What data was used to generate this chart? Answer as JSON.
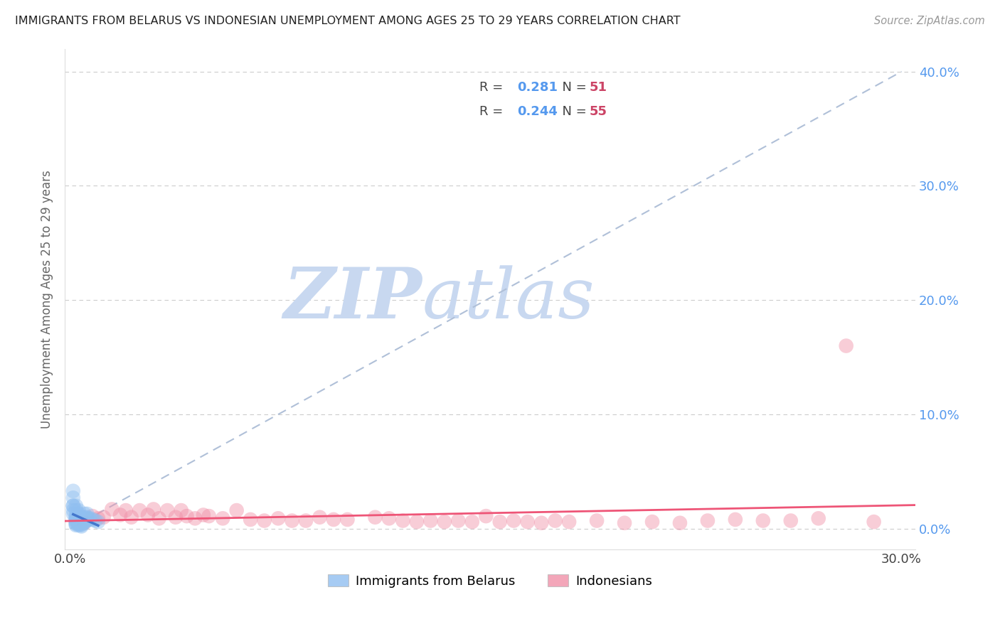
{
  "title": "IMMIGRANTS FROM BELARUS VS INDONESIAN UNEMPLOYMENT AMONG AGES 25 TO 29 YEARS CORRELATION CHART",
  "source": "Source: ZipAtlas.com",
  "ylabel": "Unemployment Among Ages 25 to 29 years",
  "ytick_vals": [
    0.0,
    0.1,
    0.2,
    0.3,
    0.4
  ],
  "xlim": [
    -0.002,
    0.305
  ],
  "ylim": [
    -0.018,
    0.42
  ],
  "R_belarus": 0.281,
  "N_belarus": 51,
  "R_indonesian": 0.244,
  "N_indonesian": 55,
  "scatter_belarus": [
    [
      0.001,
      0.033
    ],
    [
      0.001,
      0.027
    ],
    [
      0.001,
      0.02
    ],
    [
      0.001,
      0.02
    ],
    [
      0.001,
      0.016
    ],
    [
      0.001,
      0.013
    ],
    [
      0.002,
      0.02
    ],
    [
      0.002,
      0.016
    ],
    [
      0.002,
      0.011
    ],
    [
      0.002,
      0.01
    ],
    [
      0.002,
      0.009
    ],
    [
      0.002,
      0.008
    ],
    [
      0.002,
      0.007
    ],
    [
      0.002,
      0.006
    ],
    [
      0.002,
      0.005
    ],
    [
      0.002,
      0.004
    ],
    [
      0.002,
      0.003
    ],
    [
      0.003,
      0.016
    ],
    [
      0.003,
      0.013
    ],
    [
      0.003,
      0.01
    ],
    [
      0.003,
      0.009
    ],
    [
      0.003,
      0.008
    ],
    [
      0.003,
      0.007
    ],
    [
      0.003,
      0.006
    ],
    [
      0.003,
      0.005
    ],
    [
      0.003,
      0.004
    ],
    [
      0.003,
      0.003
    ],
    [
      0.004,
      0.01
    ],
    [
      0.004,
      0.008
    ],
    [
      0.004,
      0.007
    ],
    [
      0.004,
      0.006
    ],
    [
      0.004,
      0.005
    ],
    [
      0.004,
      0.004
    ],
    [
      0.004,
      0.003
    ],
    [
      0.004,
      0.002
    ],
    [
      0.005,
      0.013
    ],
    [
      0.005,
      0.01
    ],
    [
      0.005,
      0.008
    ],
    [
      0.005,
      0.007
    ],
    [
      0.005,
      0.006
    ],
    [
      0.005,
      0.005
    ],
    [
      0.006,
      0.013
    ],
    [
      0.006,
      0.01
    ],
    [
      0.006,
      0.009
    ],
    [
      0.006,
      0.008
    ],
    [
      0.006,
      0.007
    ],
    [
      0.007,
      0.009
    ],
    [
      0.007,
      0.008
    ],
    [
      0.008,
      0.008
    ],
    [
      0.009,
      0.007
    ],
    [
      0.01,
      0.006
    ]
  ],
  "scatter_indonesian": [
    [
      0.005,
      0.005
    ],
    [
      0.008,
      0.011
    ],
    [
      0.01,
      0.009
    ],
    [
      0.012,
      0.01
    ],
    [
      0.015,
      0.017
    ],
    [
      0.018,
      0.012
    ],
    [
      0.02,
      0.016
    ],
    [
      0.022,
      0.01
    ],
    [
      0.025,
      0.016
    ],
    [
      0.028,
      0.012
    ],
    [
      0.03,
      0.017
    ],
    [
      0.032,
      0.009
    ],
    [
      0.035,
      0.016
    ],
    [
      0.038,
      0.01
    ],
    [
      0.04,
      0.016
    ],
    [
      0.042,
      0.011
    ],
    [
      0.045,
      0.009
    ],
    [
      0.048,
      0.012
    ],
    [
      0.05,
      0.011
    ],
    [
      0.055,
      0.009
    ],
    [
      0.06,
      0.016
    ],
    [
      0.065,
      0.008
    ],
    [
      0.07,
      0.007
    ],
    [
      0.075,
      0.009
    ],
    [
      0.08,
      0.007
    ],
    [
      0.085,
      0.007
    ],
    [
      0.09,
      0.01
    ],
    [
      0.095,
      0.008
    ],
    [
      0.1,
      0.008
    ],
    [
      0.11,
      0.01
    ],
    [
      0.115,
      0.009
    ],
    [
      0.12,
      0.007
    ],
    [
      0.125,
      0.006
    ],
    [
      0.13,
      0.007
    ],
    [
      0.135,
      0.006
    ],
    [
      0.14,
      0.007
    ],
    [
      0.145,
      0.006
    ],
    [
      0.15,
      0.011
    ],
    [
      0.155,
      0.006
    ],
    [
      0.16,
      0.007
    ],
    [
      0.165,
      0.006
    ],
    [
      0.17,
      0.005
    ],
    [
      0.175,
      0.007
    ],
    [
      0.18,
      0.006
    ],
    [
      0.19,
      0.007
    ],
    [
      0.2,
      0.005
    ],
    [
      0.21,
      0.006
    ],
    [
      0.22,
      0.005
    ],
    [
      0.23,
      0.007
    ],
    [
      0.24,
      0.008
    ],
    [
      0.25,
      0.007
    ],
    [
      0.26,
      0.007
    ],
    [
      0.27,
      0.009
    ],
    [
      0.28,
      0.16
    ],
    [
      0.29,
      0.006
    ]
  ],
  "color_belarus": "#90bff0",
  "color_indonesian": "#f090a8",
  "trend_line_color_belarus": "#4477cc",
  "trend_line_color_indonesian": "#ee5577",
  "trend_dashed_color": "#b0c0d8",
  "background_color": "#ffffff",
  "grid_color": "#cccccc",
  "title_color": "#222222",
  "axis_label_color": "#666666",
  "tick_color_right": "#5599ee",
  "watermark_zip_color": "#c8d8f0",
  "watermark_atlas_color": "#c8d8f0",
  "legend_R_color": "#5599ee",
  "legend_N_color": "#cc4466"
}
